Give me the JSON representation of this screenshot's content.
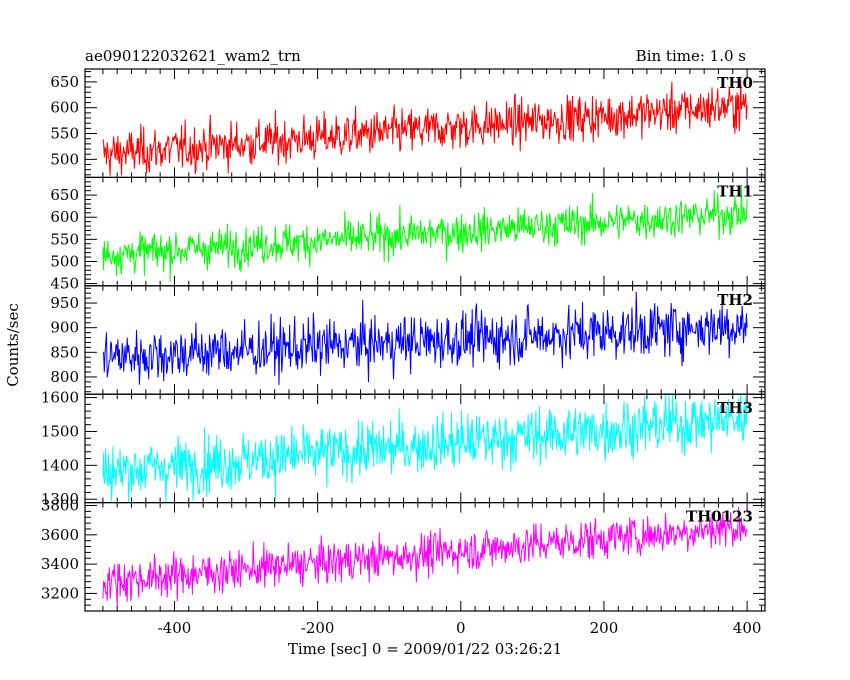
{
  "chart_data": {
    "type": "line",
    "title_left": "ae090122032621_wam2_trn",
    "title_right": "Bin time: 1.0 s",
    "xlabel": "Time [sec] 0 = 2009/01/22 03:26:21",
    "ylabel": "Counts/sec",
    "x_range": [
      -500,
      400
    ],
    "xlim": [
      -525,
      425
    ],
    "x_ticks": [
      -400,
      -200,
      0,
      200,
      400
    ],
    "bin_time_s": 1.0,
    "series": [
      {
        "name": "TH0",
        "color": "#ff0000",
        "ylim": [
          465,
          675
        ],
        "y_ticks": [
          500,
          550,
          600,
          650
        ],
        "trend_start": 510,
        "trend_end": 605,
        "noise_sd": 22
      },
      {
        "name": "TH1",
        "color": "#00ff00",
        "ylim": [
          445,
          690
        ],
        "y_ticks": [
          450,
          500,
          550,
          600,
          650
        ],
        "trend_start": 515,
        "trend_end": 610,
        "noise_sd": 22
      },
      {
        "name": "TH2",
        "color": "#0000ff",
        "ylim": [
          765,
          985
        ],
        "y_ticks": [
          800,
          850,
          900,
          950
        ],
        "trend_start": 840,
        "trend_end": 905,
        "noise_sd": 28
      },
      {
        "name": "TH3",
        "color": "#00ffff",
        "ylim": [
          1290,
          1610
        ],
        "y_ticks": [
          1300,
          1400,
          1500,
          1600
        ],
        "trend_start": 1380,
        "trend_end": 1540,
        "noise_sd": 42
      },
      {
        "name": "TH0123",
        "color": "#ff00ff",
        "ylim": [
          3080,
          3820
        ],
        "y_ticks": [
          3200,
          3400,
          3600,
          3800
        ],
        "trend_start": 3280,
        "trend_end": 3660,
        "noise_sd": 70
      }
    ]
  }
}
